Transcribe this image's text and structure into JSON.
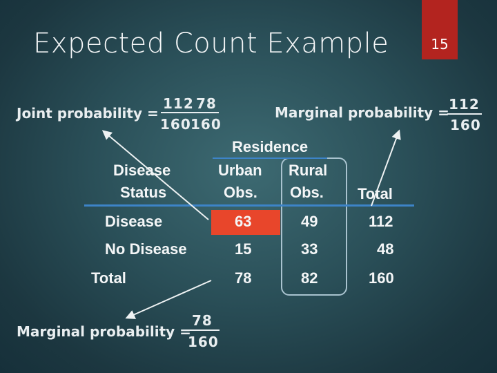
{
  "slide": {
    "title": "Expected Count Example",
    "number": "15"
  },
  "joint": {
    "label": "Joint probability =",
    "numerator_a": "112",
    "numerator_b": "78",
    "denominator_a": "160",
    "denominator_b": "160"
  },
  "marginal_row": {
    "label": "Marginal probability =",
    "numerator": "112",
    "denominator": "160"
  },
  "marginal_col": {
    "label": "Marginal probability =",
    "numerator": "78",
    "denominator": "160"
  },
  "table": {
    "residence_header": "Residence",
    "disease_status_line1": "Disease",
    "disease_status_line2": "Status",
    "urban_line1": "Urban",
    "urban_line2": "Obs.",
    "rural_line1": "Rural",
    "rural_line2": "Obs.",
    "total_header": "Total",
    "rows": [
      {
        "label": "Disease",
        "urban": "63",
        "rural": "49",
        "total": "112"
      },
      {
        "label": "No Disease",
        "urban": "15",
        "rural": "33",
        "total": "48"
      },
      {
        "label": "Total",
        "urban": "78",
        "rural": "82",
        "total": "160"
      }
    ]
  },
  "colors": {
    "highlight": "#e8462b",
    "accent_blue": "#3d84c8",
    "slide_number_box": "#b3241f"
  }
}
